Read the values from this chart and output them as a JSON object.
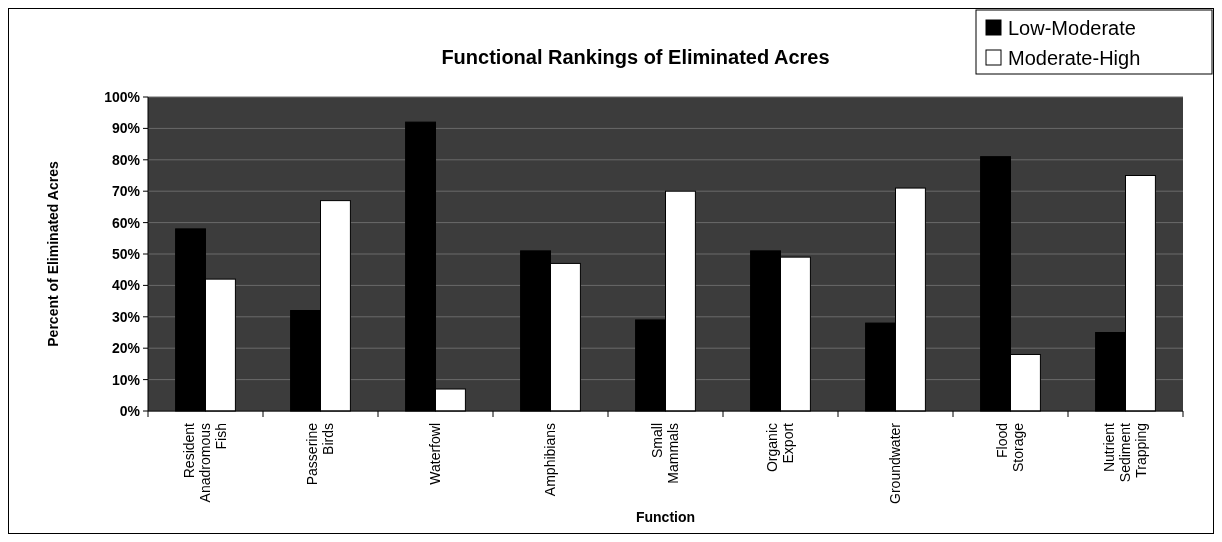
{
  "chart_data": {
    "type": "bar",
    "title": "Functional Rankings of Eliminated Acres",
    "xlabel": "Function",
    "ylabel": "Percent of Eliminated Acres",
    "categories": [
      "Resident Anadromous Fish",
      "Passerine Birds",
      "Waterfowl",
      "Amphibians",
      "Small Mammals",
      "Organic Export",
      "Groundwater",
      "Flood Storage",
      "Nutrient Sediment Trapping"
    ],
    "series": [
      {
        "name": "Low-Moderate",
        "color": "#000000",
        "values": [
          58,
          32,
          92,
          51,
          29,
          51,
          28,
          81,
          25
        ]
      },
      {
        "name": "Moderate-High",
        "color": "#ffffff",
        "values": [
          42,
          67,
          7,
          47,
          70,
          49,
          71,
          18,
          75
        ]
      }
    ],
    "ylim": [
      0,
      100
    ],
    "yticks": [
      {
        "value": 0,
        "label": "0%"
      },
      {
        "value": 10,
        "label": "10%"
      },
      {
        "value": 20,
        "label": "20%"
      },
      {
        "value": 30,
        "label": "30%"
      },
      {
        "value": 40,
        "label": "40%"
      },
      {
        "value": 50,
        "label": "50%"
      },
      {
        "value": 60,
        "label": "60%"
      },
      {
        "value": 70,
        "label": "70%"
      },
      {
        "value": 80,
        "label": "80%"
      },
      {
        "value": 90,
        "label": "90%"
      },
      {
        "value": 100,
        "label": "100%"
      }
    ],
    "grid": "y",
    "legend": "top right"
  }
}
